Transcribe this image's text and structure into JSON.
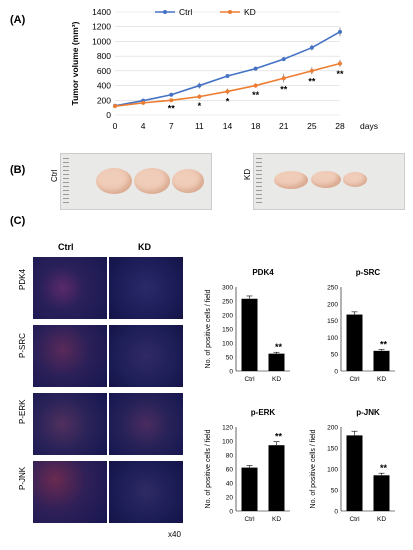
{
  "panel_labels": {
    "a": "(A)",
    "b": "(B)",
    "c": "(C)"
  },
  "photo_labels": {
    "ctrl": "Ctrl",
    "kd": "KD"
  },
  "micro": {
    "col_headers": [
      "Ctrl",
      "KD"
    ],
    "rows": [
      "PDK4",
      "P-SRC",
      "P-ERK",
      "P-JNK"
    ],
    "magnification": "x40"
  },
  "colors": {
    "ctrl_line": "#4472c4",
    "kd_line": "#ed7d31",
    "bar": "#000000",
    "micro_bg": "#1a1a5a",
    "tumor": "#f0cdb9"
  },
  "chart_data": [
    {
      "type": "line",
      "title": "",
      "xlabel": "days",
      "ylabel": "Tumor volume (mm³)",
      "x": [
        0,
        4,
        7,
        11,
        14,
        18,
        21,
        25,
        28
      ],
      "ylim": [
        0,
        1400
      ],
      "yticks": [
        0,
        200,
        400,
        600,
        800,
        1000,
        1200,
        1400
      ],
      "legend_position": "top",
      "series": [
        {
          "name": "Ctrl",
          "values": [
            125,
            195,
            275,
            400,
            530,
            630,
            760,
            915,
            1130
          ],
          "errors": [
            10,
            15,
            20,
            40,
            20,
            25,
            25,
            40,
            60
          ]
        },
        {
          "name": "KD",
          "values": [
            120,
            165,
            200,
            250,
            320,
            400,
            500,
            600,
            700
          ],
          "errors": [
            10,
            10,
            15,
            30,
            40,
            30,
            60,
            50,
            50
          ]
        }
      ],
      "annotations": [
        {
          "x": 7,
          "text": "**"
        },
        {
          "x": 11,
          "text": "*"
        },
        {
          "x": 14,
          "text": "*"
        },
        {
          "x": 18,
          "text": "**"
        },
        {
          "x": 21,
          "text": "**"
        },
        {
          "x": 25,
          "text": "**"
        },
        {
          "x": 28,
          "text": "**"
        }
      ]
    },
    {
      "type": "bar",
      "title": "PDK4",
      "ylabel": "No. of positive cells / field",
      "categories": [
        "Ctrl",
        "KD"
      ],
      "values": [
        258,
        62
      ],
      "errors": [
        10,
        5
      ],
      "ylim": [
        0,
        300
      ],
      "yticks": [
        0,
        50,
        100,
        150,
        200,
        250,
        300
      ],
      "significance": [
        "",
        "**"
      ]
    },
    {
      "type": "bar",
      "title": "p-SRC",
      "ylabel": "",
      "categories": [
        "Ctrl",
        "KD"
      ],
      "values": [
        168,
        60
      ],
      "errors": [
        8,
        4
      ],
      "ylim": [
        0,
        250
      ],
      "yticks": [
        0,
        50,
        100,
        150,
        200,
        250
      ],
      "significance": [
        "",
        "**"
      ]
    },
    {
      "type": "bar",
      "title": "p-ERK",
      "ylabel": "No. of positive cells / field",
      "categories": [
        "Ctrl",
        "KD"
      ],
      "values": [
        62,
        94
      ],
      "errors": [
        3,
        5
      ],
      "ylim": [
        0,
        120
      ],
      "yticks": [
        0,
        20,
        40,
        60,
        80,
        100,
        120
      ],
      "significance": [
        "",
        "**"
      ]
    },
    {
      "type": "bar",
      "title": "p-JNK",
      "ylabel": "No. of positive cells / field",
      "categories": [
        "Ctrl",
        "KD"
      ],
      "values": [
        180,
        85
      ],
      "errors": [
        10,
        5
      ],
      "ylim": [
        0,
        200
      ],
      "yticks": [
        0,
        50,
        100,
        150,
        200
      ],
      "significance": [
        "",
        "**"
      ]
    }
  ]
}
